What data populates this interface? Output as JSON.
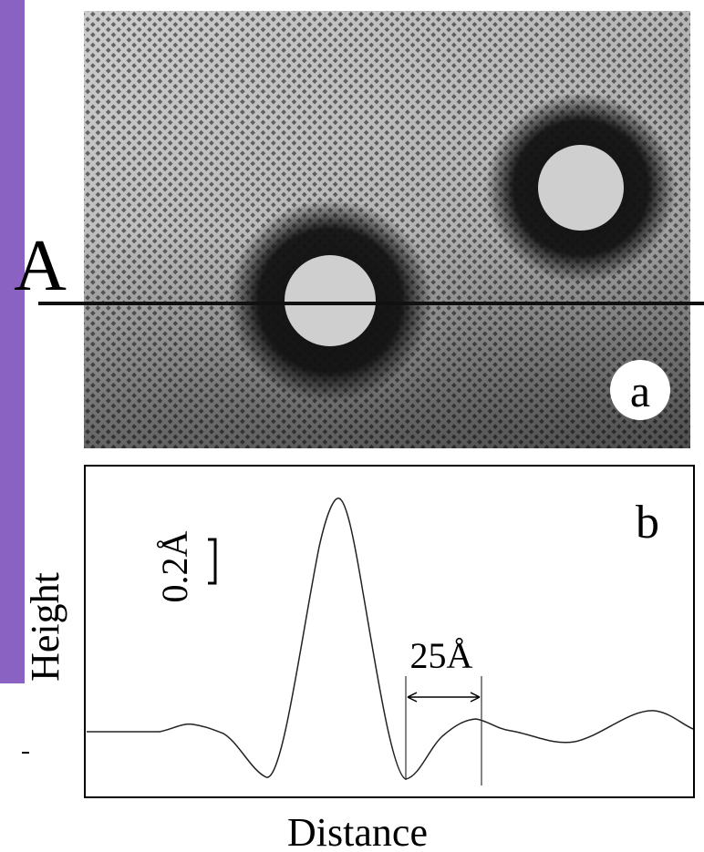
{
  "panel_a": {
    "line_label": "A",
    "label": "a"
  },
  "panel_b": {
    "label": "b",
    "vertical_scale": "0.2Å",
    "horizontal_scale": "25Å",
    "y_axis_label": "Height",
    "x_axis_label": "Distance"
  }
}
